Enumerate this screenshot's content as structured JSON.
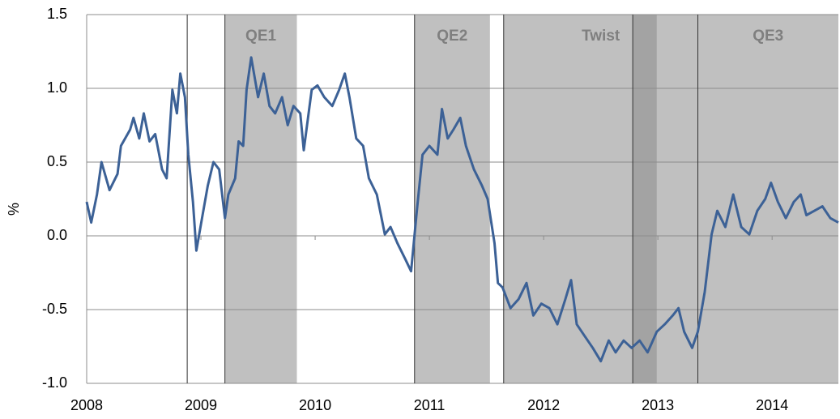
{
  "chart_data": {
    "type": "line",
    "y_label": "%",
    "x": [
      2008.0,
      2008.04,
      2008.09,
      2008.13,
      2008.2,
      2008.27,
      2008.3,
      2008.38,
      2008.41,
      2008.46,
      2008.5,
      2008.55,
      2008.6,
      2008.66,
      2008.7,
      2008.75,
      2008.79,
      2008.82,
      2008.86,
      2008.89,
      2008.93,
      2008.96,
      2009.01,
      2009.06,
      2009.11,
      2009.16,
      2009.21,
      2009.24,
      2009.3,
      2009.33,
      2009.37,
      2009.4,
      2009.44,
      2009.5,
      2009.55,
      2009.6,
      2009.65,
      2009.71,
      2009.76,
      2009.81,
      2009.87,
      2009.9,
      2009.97,
      2010.02,
      2010.08,
      2010.15,
      2010.21,
      2010.26,
      2010.3,
      2010.36,
      2010.42,
      2010.47,
      2010.54,
      2010.61,
      2010.66,
      2010.72,
      2010.79,
      2010.84,
      2010.89,
      2010.94,
      2011.0,
      2011.07,
      2011.11,
      2011.16,
      2011.21,
      2011.27,
      2011.32,
      2011.39,
      2011.46,
      2011.51,
      2011.57,
      2011.6,
      2011.64,
      2011.71,
      2011.78,
      2011.85,
      2011.91,
      2011.98,
      2012.05,
      2012.12,
      2012.19,
      2012.24,
      2012.29,
      2012.36,
      2012.43,
      2012.5,
      2012.57,
      2012.63,
      2012.7,
      2012.77,
      2012.84,
      2012.91,
      2012.99,
      2013.06,
      2013.13,
      2013.18,
      2013.23,
      2013.3,
      2013.35,
      2013.41,
      2013.47,
      2013.52,
      2013.59,
      2013.66,
      2013.73,
      2013.8,
      2013.87,
      2013.94,
      2013.99,
      2014.05,
      2014.12,
      2014.19,
      2014.25,
      2014.3,
      2014.37,
      2014.44,
      2014.51,
      2014.58
    ],
    "series": [
      {
        "color": "#3c6196",
        "values": [
          0.23,
          0.09,
          0.28,
          0.5,
          0.31,
          0.42,
          0.61,
          0.72,
          0.8,
          0.66,
          0.83,
          0.64,
          0.69,
          0.45,
          0.39,
          0.99,
          0.83,
          1.1,
          0.94,
          0.55,
          0.23,
          -0.1,
          0.12,
          0.34,
          0.5,
          0.45,
          0.12,
          0.28,
          0.39,
          0.64,
          0.61,
          0.99,
          1.21,
          0.94,
          1.1,
          0.88,
          0.83,
          0.94,
          0.75,
          0.88,
          0.83,
          0.58,
          0.99,
          1.02,
          0.94,
          0.88,
          0.99,
          1.1,
          0.94,
          0.66,
          0.61,
          0.39,
          0.28,
          0.01,
          0.06,
          -0.05,
          -0.16,
          -0.24,
          0.17,
          0.55,
          0.61,
          0.55,
          0.86,
          0.66,
          0.72,
          0.8,
          0.61,
          0.45,
          0.34,
          0.25,
          -0.05,
          -0.32,
          -0.35,
          -0.49,
          -0.43,
          -0.32,
          -0.54,
          -0.46,
          -0.49,
          -0.6,
          -0.43,
          -0.3,
          -0.6,
          -0.68,
          -0.76,
          -0.85,
          -0.71,
          -0.79,
          -0.71,
          -0.76,
          -0.71,
          -0.79,
          -0.65,
          -0.6,
          -0.54,
          -0.49,
          -0.65,
          -0.76,
          -0.65,
          -0.38,
          0.01,
          0.17,
          0.06,
          0.28,
          0.06,
          0.01,
          0.17,
          0.25,
          0.36,
          0.23,
          0.12,
          0.23,
          0.28,
          0.14,
          0.17,
          0.2,
          0.12,
          0.09
        ]
      }
    ],
    "regions": [
      {
        "label": "QE1",
        "start": 2009.21,
        "end": 2009.84,
        "color": "#c0c0c0"
      },
      {
        "label": "QE2",
        "start": 2010.87,
        "end": 2011.53,
        "color": "#c0c0c0"
      },
      {
        "label": "Twist",
        "start": 2011.65,
        "end": 2013.35,
        "color": "#c0c0c0"
      },
      {
        "label": "QE3",
        "start": 2013.35,
        "end": 2014.58,
        "color": "#c0c0c0"
      }
    ],
    "highlight": {
      "start": 2012.78,
      "end": 2012.99,
      "color": "#a3a3a3"
    },
    "markers": [
      2008.88
    ],
    "xlim": [
      2008,
      2014.58
    ],
    "xticks": [
      2008,
      2009,
      2010,
      2011,
      2012,
      2013,
      2014
    ],
    "ylim": [
      -1.0,
      1.5
    ],
    "yticks": [
      {
        "value": -1.0,
        "label": "-1.0"
      },
      -0.5,
      {
        "value": 0.0,
        "label": "0.0"
      },
      0.5,
      {
        "value": 1.0,
        "label": "1.0"
      },
      1.5
    ],
    "grid": true
  }
}
